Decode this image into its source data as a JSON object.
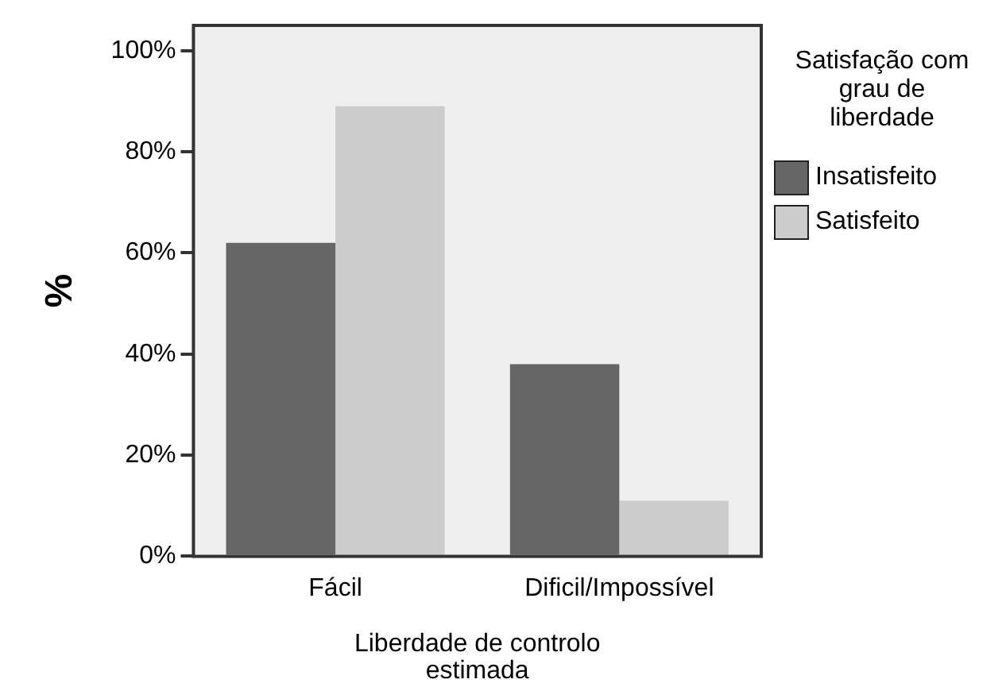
{
  "chart_data": {
    "type": "bar",
    "xlabel": "Liberdade de controlo estimada",
    "ylabel": "%",
    "legend_title": "Satisfação com grau de liberdade",
    "categories": [
      "Fácil",
      "Dificil/Impossível"
    ],
    "series": [
      {
        "name": "Insatisfeito",
        "color": "#666666",
        "values": [
          62,
          38
        ]
      },
      {
        "name": "Satisfeito",
        "color": "#cccccc",
        "values": [
          89,
          11
        ]
      }
    ],
    "ylim": [
      0,
      105
    ],
    "yticks": [
      {
        "value": 0,
        "label": "0%"
      },
      {
        "value": 20,
        "label": "20%"
      },
      {
        "value": 40,
        "label": "40%"
      },
      {
        "value": 60,
        "label": "60%"
      },
      {
        "value": 80,
        "label": "80%"
      },
      {
        "value": 100,
        "label": "100%"
      }
    ],
    "grid": false,
    "legend": "right"
  }
}
